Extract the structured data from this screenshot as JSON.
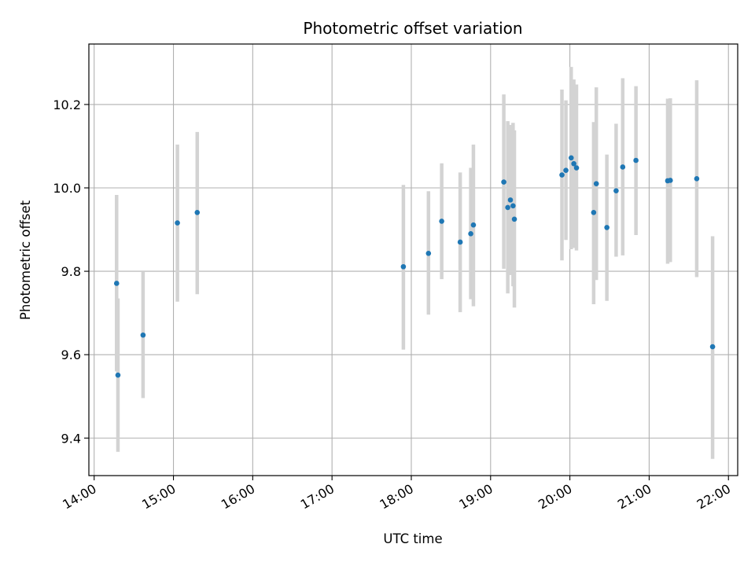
{
  "chart_data": {
    "type": "scatter",
    "title": "Photometric offset variation",
    "xlabel": "UTC time",
    "ylabel": "Photometric offset",
    "x_unit": "UTC hours (HH:MM)",
    "xlim": [
      "13:56",
      "22:07"
    ],
    "ylim": [
      9.31,
      10.345
    ],
    "xticks": [
      "14:00",
      "15:00",
      "16:00",
      "17:00",
      "18:00",
      "19:00",
      "20:00",
      "21:00",
      "22:00"
    ],
    "yticks": [
      "9.4",
      "9.6",
      "9.8",
      "10.0",
      "10.2"
    ],
    "grid": true,
    "legend": "none",
    "marker_color": "#1f77b4",
    "errorbar_color": "#d3d3d3",
    "points": [
      {
        "x": "14:17",
        "y": 9.771,
        "lo": 9.56,
        "hi": 9.983
      },
      {
        "x": "14:18",
        "y": 9.551,
        "lo": 9.367,
        "hi": 9.735
      },
      {
        "x": "14:37",
        "y": 9.647,
        "lo": 9.496,
        "hi": 9.8
      },
      {
        "x": "15:03",
        "y": 9.916,
        "lo": 9.727,
        "hi": 10.104
      },
      {
        "x": "15:18",
        "y": 9.941,
        "lo": 9.745,
        "hi": 10.134
      },
      {
        "x": "17:54",
        "y": 9.811,
        "lo": 9.612,
        "hi": 10.007
      },
      {
        "x": "18:13",
        "y": 9.843,
        "lo": 9.696,
        "hi": 9.992
      },
      {
        "x": "18:23",
        "y": 9.92,
        "lo": 9.781,
        "hi": 10.059
      },
      {
        "x": "18:37",
        "y": 9.87,
        "lo": 9.702,
        "hi": 10.037
      },
      {
        "x": "18:45",
        "y": 9.89,
        "lo": 9.733,
        "hi": 10.048
      },
      {
        "x": "18:47",
        "y": 9.911,
        "lo": 9.716,
        "hi": 10.104
      },
      {
        "x": "19:10",
        "y": 10.014,
        "lo": 9.806,
        "hi": 10.224
      },
      {
        "x": "19:13",
        "y": 9.953,
        "lo": 9.747,
        "hi": 10.16
      },
      {
        "x": "19:15",
        "y": 9.971,
        "lo": 9.791,
        "hi": 10.151
      },
      {
        "x": "19:17",
        "y": 9.957,
        "lo": 9.764,
        "hi": 10.156
      },
      {
        "x": "19:18",
        "y": 9.925,
        "lo": 9.713,
        "hi": 10.138
      },
      {
        "x": "19:54",
        "y": 10.031,
        "lo": 9.826,
        "hi": 10.236
      },
      {
        "x": "19:57",
        "y": 10.042,
        "lo": 9.875,
        "hi": 10.21
      },
      {
        "x": "20:01",
        "y": 10.072,
        "lo": 9.853,
        "hi": 10.29
      },
      {
        "x": "20:03",
        "y": 10.058,
        "lo": 9.856,
        "hi": 10.26
      },
      {
        "x": "20:05",
        "y": 10.048,
        "lo": 9.85,
        "hi": 10.248
      },
      {
        "x": "20:18",
        "y": 9.941,
        "lo": 9.721,
        "hi": 10.158
      },
      {
        "x": "20:20",
        "y": 10.01,
        "lo": 9.779,
        "hi": 10.241
      },
      {
        "x": "20:28",
        "y": 9.905,
        "lo": 9.729,
        "hi": 10.08
      },
      {
        "x": "20:35",
        "y": 9.993,
        "lo": 9.835,
        "hi": 10.154
      },
      {
        "x": "20:40",
        "y": 10.05,
        "lo": 9.838,
        "hi": 10.263
      },
      {
        "x": "20:50",
        "y": 10.066,
        "lo": 9.887,
        "hi": 10.244
      },
      {
        "x": "21:14",
        "y": 10.017,
        "lo": 9.818,
        "hi": 10.214
      },
      {
        "x": "21:16",
        "y": 10.018,
        "lo": 9.822,
        "hi": 10.215
      },
      {
        "x": "21:36",
        "y": 10.022,
        "lo": 9.786,
        "hi": 10.258
      },
      {
        "x": "21:48",
        "y": 9.619,
        "lo": 9.35,
        "hi": 9.884
      }
    ]
  }
}
